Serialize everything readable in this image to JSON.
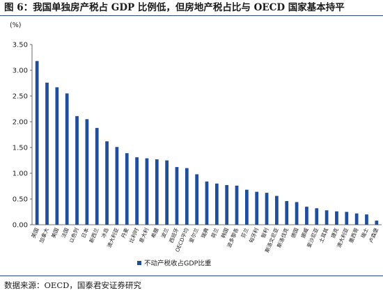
{
  "figure": {
    "title": "图 6：我国单独房产税占 GDP 比例低，但房地产税占比与 OECD 国家基本持平",
    "source": "数据来源：OECD，国泰君安证券研究"
  },
  "chart_data": {
    "type": "bar",
    "unit": "(%)",
    "categories": [
      "英国",
      "加拿大",
      "美国",
      "法国",
      "以色列",
      "日本",
      "新西兰",
      "冰岛",
      "澳大利亚",
      "丹麦",
      "比利时",
      "意大利",
      "希腊",
      "波兰",
      "西班牙",
      "OECD平均",
      "爱尔兰",
      "瑞典",
      "荷兰",
      "韩国",
      "波多黎各",
      "芬兰",
      "匈牙利",
      "智利",
      "斯洛文尼亚",
      "斯洛伐克",
      "德国",
      "挪威",
      "爱沙尼亚",
      "土耳其",
      "捷克",
      "澳大利亚",
      "墨西哥",
      "瑞士",
      "卢森堡"
    ],
    "series": [
      {
        "name": "不动产税收占GDP比重",
        "values": [
          3.18,
          2.76,
          2.67,
          2.55,
          2.11,
          2.05,
          1.88,
          1.62,
          1.51,
          1.39,
          1.31,
          1.29,
          1.27,
          1.25,
          1.12,
          1.1,
          0.98,
          0.84,
          0.8,
          0.77,
          0.76,
          0.68,
          0.64,
          0.62,
          0.56,
          0.46,
          0.44,
          0.35,
          0.32,
          0.28,
          0.26,
          0.25,
          0.22,
          0.2,
          0.08
        ]
      }
    ],
    "y_ticks": [
      "0.00",
      "0.50",
      "1.00",
      "1.50",
      "2.00",
      "2.50",
      "3.00",
      "3.50"
    ],
    "ylim": [
      0,
      3.5
    ],
    "grid": false,
    "legend_position": "bottom",
    "colors": {
      "bar": "#1f4e9c"
    }
  }
}
